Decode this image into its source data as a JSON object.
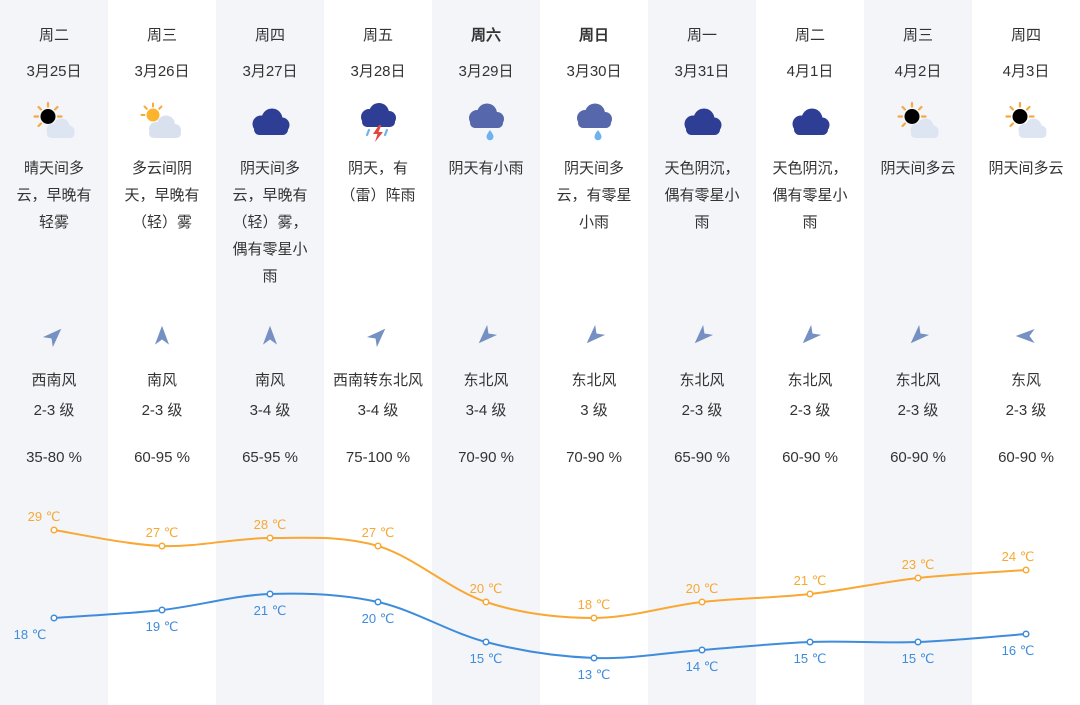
{
  "colors": {
    "column_bg_a": "#f4f5f9",
    "column_bg_b": "#ffffff",
    "text": "#333333",
    "high_line": "#f8a833",
    "low_line": "#3e8cdb",
    "wind_icon": "#7590c2",
    "sun": "#fcb42c",
    "light_cloud": "#dde5f2",
    "gray_cloud": "#d9e1ef",
    "dark_cloud": "#2e3e95",
    "rain_cloud": "#5767ab",
    "thunder_bolt": "#e2473c",
    "rain_drop": "#6cb2ef"
  },
  "columns": [
    {
      "day": "周二",
      "date": "3月25日",
      "weekend": false,
      "icon": "sun-cloud",
      "desc": "晴天间多云，早晚有轻雾",
      "wind_dir": "西南风",
      "wind_level": "2-3 级",
      "wind_bearing_deg": 45,
      "humidity": "35-80 %",
      "temp_high": 29,
      "temp_low": 18
    },
    {
      "day": "周三",
      "date": "3月26日",
      "weekend": false,
      "icon": "cloud-sun",
      "desc": "多云间阴天，早晚有（轻）雾",
      "wind_dir": "南风",
      "wind_level": "2-3 级",
      "wind_bearing_deg": 0,
      "humidity": "60-95 %",
      "temp_high": 27,
      "temp_low": 19
    },
    {
      "day": "周四",
      "date": "3月27日",
      "weekend": false,
      "icon": "dark-cloud",
      "desc": "阴天间多云，早晚有（轻）雾，偶有零星小雨",
      "wind_dir": "南风",
      "wind_level": "3-4 级",
      "wind_bearing_deg": 0,
      "humidity": "65-95 %",
      "temp_high": 28,
      "temp_low": 21
    },
    {
      "day": "周五",
      "date": "3月28日",
      "weekend": false,
      "icon": "thunder-cloud",
      "desc": "阴天，有（雷）阵雨",
      "wind_dir": "西南转东北风",
      "wind_level": "3-4 级",
      "wind_bearing_deg": 45,
      "humidity": "75-100 %",
      "temp_high": 27,
      "temp_low": 20
    },
    {
      "day": "周六",
      "date": "3月29日",
      "weekend": true,
      "icon": "rain-cloud",
      "desc": "阴天有小雨",
      "wind_dir": "东北风",
      "wind_level": "3-4 级",
      "wind_bearing_deg": 225,
      "humidity": "70-90 %",
      "temp_high": 20,
      "temp_low": 15
    },
    {
      "day": "周日",
      "date": "3月30日",
      "weekend": true,
      "icon": "rain-cloud",
      "desc": "阴天间多云，有零星小雨",
      "wind_dir": "东北风",
      "wind_level": "3 级",
      "wind_bearing_deg": 225,
      "humidity": "70-90 %",
      "temp_high": 18,
      "temp_low": 13
    },
    {
      "day": "周一",
      "date": "3月31日",
      "weekend": false,
      "icon": "dark-cloud",
      "desc": "天色阴沉，偶有零星小雨",
      "wind_dir": "东北风",
      "wind_level": "2-3 级",
      "wind_bearing_deg": 225,
      "humidity": "65-90 %",
      "temp_high": 20,
      "temp_low": 14
    },
    {
      "day": "周二",
      "date": "4月1日",
      "weekend": false,
      "icon": "dark-cloud",
      "desc": "天色阴沉，偶有零星小雨",
      "wind_dir": "东北风",
      "wind_level": "2-3 级",
      "wind_bearing_deg": 225,
      "humidity": "60-90 %",
      "temp_high": 21,
      "temp_low": 15
    },
    {
      "day": "周三",
      "date": "4月2日",
      "weekend": false,
      "icon": "sun-cloud",
      "desc": "阴天间多云",
      "wind_dir": "东北风",
      "wind_level": "2-3 级",
      "wind_bearing_deg": 225,
      "humidity": "60-90 %",
      "temp_high": 23,
      "temp_low": 15
    },
    {
      "day": "周四",
      "date": "4月3日",
      "weekend": false,
      "icon": "sun-cloud",
      "desc": "阴天间多云",
      "wind_dir": "东风",
      "wind_level": "2-3 级",
      "wind_bearing_deg": 270,
      "humidity": "60-90 %",
      "temp_high": 24,
      "temp_low": 16
    }
  ],
  "chart_data": {
    "type": "line",
    "categories": [
      "3月25日",
      "3月26日",
      "3月27日",
      "3月28日",
      "3月29日",
      "3月30日",
      "3月31日",
      "4月1日",
      "4月2日",
      "4月3日"
    ],
    "series": [
      {
        "key": "high",
        "name": "high",
        "unit": "℃",
        "color": "#f8a833",
        "values": [
          29,
          27,
          28,
          27,
          20,
          18,
          20,
          21,
          23,
          24
        ]
      },
      {
        "key": "low",
        "name": "low",
        "unit": "℃",
        "color": "#3e8cdb",
        "values": [
          18,
          19,
          21,
          20,
          15,
          13,
          14,
          15,
          15,
          16
        ]
      }
    ],
    "ylim": [
      12,
      30
    ],
    "grid": false,
    "legend": "none"
  }
}
